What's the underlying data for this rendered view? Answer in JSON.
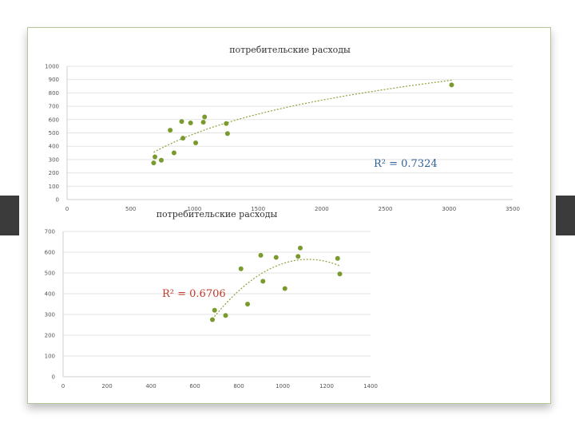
{
  "chart_data": [
    {
      "type": "scatter",
      "title": "потребительские расходы",
      "xlim": [
        0,
        3500
      ],
      "ylim": [
        0,
        1000
      ],
      "xticks": [
        0,
        500,
        1000,
        1500,
        2000,
        2500,
        3000,
        3500
      ],
      "yticks": [
        0,
        100,
        200,
        300,
        400,
        500,
        600,
        700,
        800,
        900,
        1000
      ],
      "points": [
        {
          "x": 680,
          "y": 275
        },
        {
          "x": 690,
          "y": 320
        },
        {
          "x": 740,
          "y": 295
        },
        {
          "x": 810,
          "y": 520
        },
        {
          "x": 840,
          "y": 350
        },
        {
          "x": 900,
          "y": 585
        },
        {
          "x": 910,
          "y": 460
        },
        {
          "x": 970,
          "y": 575
        },
        {
          "x": 1010,
          "y": 425
        },
        {
          "x": 1070,
          "y": 580
        },
        {
          "x": 1080,
          "y": 620
        },
        {
          "x": 1250,
          "y": 570
        },
        {
          "x": 1260,
          "y": 495
        },
        {
          "x": 3020,
          "y": 860
        }
      ],
      "trendline": {
        "type": "logarithmic",
        "annotation": "R² = 0.7324"
      },
      "grid": true,
      "legend": "none"
    },
    {
      "type": "scatter",
      "title": "потребительские расходы",
      "xlim": [
        0,
        1400
      ],
      "ylim": [
        0,
        700
      ],
      "xticks": [
        0,
        200,
        400,
        600,
        800,
        1000,
        1200,
        1400
      ],
      "yticks": [
        0,
        100,
        200,
        300,
        400,
        500,
        600,
        700
      ],
      "points": [
        {
          "x": 680,
          "y": 275
        },
        {
          "x": 690,
          "y": 320
        },
        {
          "x": 740,
          "y": 295
        },
        {
          "x": 810,
          "y": 520
        },
        {
          "x": 840,
          "y": 350
        },
        {
          "x": 900,
          "y": 585
        },
        {
          "x": 910,
          "y": 460
        },
        {
          "x": 970,
          "y": 575
        },
        {
          "x": 1010,
          "y": 425
        },
        {
          "x": 1070,
          "y": 580
        },
        {
          "x": 1080,
          "y": 620
        },
        {
          "x": 1250,
          "y": 570
        },
        {
          "x": 1260,
          "y": 495
        }
      ],
      "trendline": {
        "type": "polynomial",
        "annotation": "R² = 0.6706"
      },
      "grid": true,
      "legend": "none"
    }
  ]
}
